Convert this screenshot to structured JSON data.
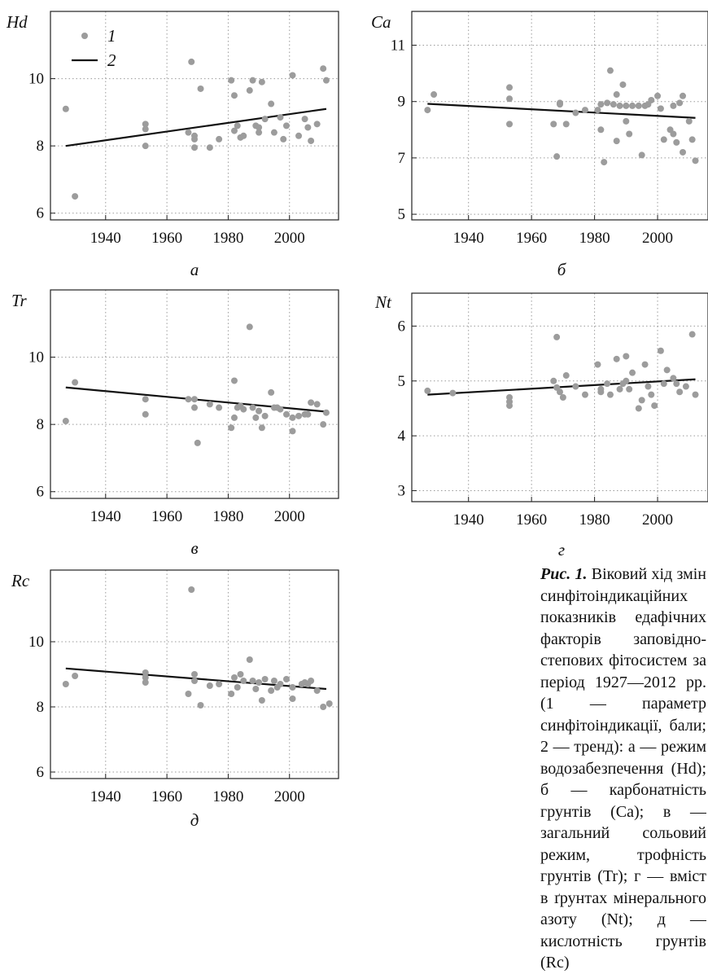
{
  "chart_data": [
    {
      "type": "scatter",
      "ylabel": "Hd",
      "sublabel": "а",
      "xlim": [
        1922,
        2016
      ],
      "ylim": [
        5.8,
        12.0
      ],
      "xticks": [
        1940,
        1960,
        1980,
        2000
      ],
      "yticks": [
        6,
        8,
        10
      ],
      "grid": true,
      "legend": {
        "placement": "top-left",
        "entries": [
          {
            "marker": "point",
            "label": "1"
          },
          {
            "marker": "line",
            "label": "2"
          }
        ]
      },
      "points": [
        [
          1927,
          9.1
        ],
        [
          1930,
          6.5
        ],
        [
          1953,
          8.0
        ],
        [
          1953,
          8.5
        ],
        [
          1953,
          8.65
        ],
        [
          1967,
          8.4
        ],
        [
          1968,
          10.5
        ],
        [
          1969,
          8.2
        ],
        [
          1969,
          8.3
        ],
        [
          1969,
          7.95
        ],
        [
          1971,
          9.7
        ],
        [
          1974,
          7.95
        ],
        [
          1977,
          8.2
        ],
        [
          1981,
          9.95
        ],
        [
          1982,
          9.5
        ],
        [
          1982,
          8.45
        ],
        [
          1983,
          8.6
        ],
        [
          1984,
          8.25
        ],
        [
          1985,
          8.3
        ],
        [
          1987,
          9.65
        ],
        [
          1988,
          9.95
        ],
        [
          1989,
          8.6
        ],
        [
          1990,
          8.55
        ],
        [
          1990,
          8.4
        ],
        [
          1991,
          9.9
        ],
        [
          1992,
          8.8
        ],
        [
          1994,
          9.25
        ],
        [
          1995,
          8.4
        ],
        [
          1997,
          8.85
        ],
        [
          1998,
          8.2
        ],
        [
          1999,
          8.6
        ],
        [
          2001,
          10.1
        ],
        [
          2003,
          8.3
        ],
        [
          2005,
          8.8
        ],
        [
          2006,
          8.55
        ],
        [
          2007,
          8.15
        ],
        [
          2009,
          8.65
        ],
        [
          2011,
          10.3
        ],
        [
          2012,
          9.95
        ]
      ],
      "trend": [
        [
          1927,
          8.0
        ],
        [
          2012,
          9.1
        ]
      ]
    },
    {
      "type": "scatter",
      "ylabel": "Ca",
      "sublabel": "б",
      "xlim": [
        1922,
        2016
      ],
      "ylim": [
        4.8,
        12.2
      ],
      "xticks": [
        1940,
        1960,
        1980,
        2000
      ],
      "yticks": [
        5,
        7,
        9,
        11
      ],
      "grid": true,
      "points": [
        [
          1927,
          8.7
        ],
        [
          1929,
          9.25
        ],
        [
          1953,
          9.5
        ],
        [
          1953,
          9.1
        ],
        [
          1953,
          8.2
        ],
        [
          1967,
          8.2
        ],
        [
          1968,
          7.05
        ],
        [
          1969,
          8.95
        ],
        [
          1969,
          8.9
        ],
        [
          1971,
          8.2
        ],
        [
          1974,
          8.6
        ],
        [
          1977,
          8.7
        ],
        [
          1981,
          8.7
        ],
        [
          1982,
          8.0
        ],
        [
          1982,
          8.9
        ],
        [
          1983,
          6.85
        ],
        [
          1984,
          8.95
        ],
        [
          1985,
          10.1
        ],
        [
          1986,
          8.9
        ],
        [
          1987,
          9.25
        ],
        [
          1987,
          7.6
        ],
        [
          1988,
          8.85
        ],
        [
          1989,
          9.6
        ],
        [
          1990,
          8.85
        ],
        [
          1990,
          8.3
        ],
        [
          1991,
          7.85
        ],
        [
          1992,
          8.85
        ],
        [
          1994,
          8.85
        ],
        [
          1995,
          7.1
        ],
        [
          1996,
          8.85
        ],
        [
          1997,
          8.9
        ],
        [
          1998,
          9.05
        ],
        [
          2000,
          9.2
        ],
        [
          2001,
          8.75
        ],
        [
          2002,
          7.65
        ],
        [
          2004,
          8.0
        ],
        [
          2005,
          8.85
        ],
        [
          2005,
          7.85
        ],
        [
          2006,
          7.55
        ],
        [
          2007,
          8.95
        ],
        [
          2008,
          7.2
        ],
        [
          2008,
          9.2
        ],
        [
          2010,
          8.3
        ],
        [
          2011,
          7.65
        ],
        [
          2012,
          6.9
        ]
      ],
      "trend": [
        [
          1927,
          8.92
        ],
        [
          2012,
          8.42
        ]
      ]
    },
    {
      "type": "scatter",
      "ylabel": "Tr",
      "sublabel": "в",
      "xlim": [
        1922,
        2016
      ],
      "ylim": [
        5.8,
        12.0
      ],
      "xticks": [
        1940,
        1960,
        1980,
        2000
      ],
      "yticks": [
        6,
        8,
        10
      ],
      "grid": true,
      "points": [
        [
          1927,
          8.1
        ],
        [
          1930,
          9.25
        ],
        [
          1953,
          8.75
        ],
        [
          1953,
          8.3
        ],
        [
          1967,
          8.75
        ],
        [
          1969,
          8.75
        ],
        [
          1969,
          8.5
        ],
        [
          1970,
          7.45
        ],
        [
          1974,
          8.6
        ],
        [
          1977,
          8.5
        ],
        [
          1981,
          7.9
        ],
        [
          1982,
          9.3
        ],
        [
          1982,
          8.2
        ],
        [
          1983,
          8.5
        ],
        [
          1984,
          8.55
        ],
        [
          1985,
          8.45
        ],
        [
          1987,
          10.9
        ],
        [
          1988,
          8.5
        ],
        [
          1989,
          8.2
        ],
        [
          1990,
          8.4
        ],
        [
          1990,
          8.4
        ],
        [
          1991,
          7.9
        ],
        [
          1992,
          8.25
        ],
        [
          1994,
          8.95
        ],
        [
          1995,
          8.5
        ],
        [
          1996,
          8.5
        ],
        [
          1997,
          8.45
        ],
        [
          1999,
          8.3
        ],
        [
          2001,
          7.8
        ],
        [
          2001,
          8.2
        ],
        [
          2003,
          8.25
        ],
        [
          2005,
          8.3
        ],
        [
          2006,
          8.3
        ],
        [
          2007,
          8.65
        ],
        [
          2009,
          8.6
        ],
        [
          2011,
          8.0
        ],
        [
          2012,
          8.35
        ]
      ],
      "trend": [
        [
          1927,
          9.1
        ],
        [
          2012,
          8.38
        ]
      ]
    },
    {
      "type": "scatter",
      "ylabel": "Nt",
      "sublabel": "г",
      "xlim": [
        1922,
        2016
      ],
      "ylim": [
        2.8,
        6.6
      ],
      "xticks": [
        1940,
        1960,
        1980,
        2000
      ],
      "yticks": [
        3,
        4,
        5,
        6
      ],
      "grid": true,
      "points": [
        [
          1927,
          4.82
        ],
        [
          1935,
          4.78
        ],
        [
          1953,
          4.7
        ],
        [
          1953,
          4.62
        ],
        [
          1953,
          4.55
        ],
        [
          1967,
          5.0
        ],
        [
          1968,
          5.8
        ],
        [
          1968,
          4.88
        ],
        [
          1969,
          4.8
        ],
        [
          1970,
          4.7
        ],
        [
          1971,
          5.1
        ],
        [
          1974,
          4.9
        ],
        [
          1977,
          4.75
        ],
        [
          1981,
          5.3
        ],
        [
          1982,
          4.85
        ],
        [
          1982,
          4.8
        ],
        [
          1984,
          4.95
        ],
        [
          1985,
          4.75
        ],
        [
          1987,
          5.4
        ],
        [
          1988,
          4.85
        ],
        [
          1989,
          4.95
        ],
        [
          1990,
          5.0
        ],
        [
          1990,
          5.45
        ],
        [
          1991,
          4.85
        ],
        [
          1992,
          5.15
        ],
        [
          1994,
          4.5
        ],
        [
          1995,
          4.65
        ],
        [
          1996,
          5.3
        ],
        [
          1997,
          4.9
        ],
        [
          1998,
          4.75
        ],
        [
          1999,
          4.55
        ],
        [
          2001,
          5.55
        ],
        [
          2002,
          4.95
        ],
        [
          2003,
          5.2
        ],
        [
          2005,
          5.05
        ],
        [
          2006,
          4.95
        ],
        [
          2007,
          4.8
        ],
        [
          2009,
          4.9
        ],
        [
          2011,
          5.85
        ],
        [
          2012,
          4.75
        ]
      ],
      "trend": [
        [
          1927,
          4.75
        ],
        [
          2012,
          5.03
        ]
      ]
    },
    {
      "type": "scatter",
      "ylabel": "Rc",
      "sublabel": "д",
      "xlim": [
        1922,
        2016
      ],
      "ylim": [
        5.8,
        12.2
      ],
      "xticks": [
        1940,
        1960,
        1980,
        2000
      ],
      "yticks": [
        6,
        8,
        10
      ],
      "grid": true,
      "points": [
        [
          1927,
          8.7
        ],
        [
          1930,
          8.95
        ],
        [
          1953,
          8.75
        ],
        [
          1953,
          8.9
        ],
        [
          1953,
          9.05
        ],
        [
          1967,
          8.4
        ],
        [
          1968,
          11.6
        ],
        [
          1969,
          9.0
        ],
        [
          1969,
          8.8
        ],
        [
          1971,
          8.05
        ],
        [
          1974,
          8.65
        ],
        [
          1977,
          8.7
        ],
        [
          1981,
          8.4
        ],
        [
          1982,
          8.9
        ],
        [
          1983,
          8.6
        ],
        [
          1984,
          9.0
        ],
        [
          1985,
          8.8
        ],
        [
          1987,
          9.45
        ],
        [
          1988,
          8.8
        ],
        [
          1989,
          8.55
        ],
        [
          1990,
          8.75
        ],
        [
          1991,
          8.2
        ],
        [
          1992,
          8.85
        ],
        [
          1994,
          8.5
        ],
        [
          1995,
          8.8
        ],
        [
          1996,
          8.6
        ],
        [
          1997,
          8.7
        ],
        [
          1999,
          8.85
        ],
        [
          2001,
          8.25
        ],
        [
          2001,
          8.6
        ],
        [
          2004,
          8.7
        ],
        [
          2005,
          8.75
        ],
        [
          2006,
          8.7
        ],
        [
          2007,
          8.8
        ],
        [
          2009,
          8.5
        ],
        [
          2011,
          8.0
        ],
        [
          2013,
          8.1
        ]
      ],
      "trend": [
        [
          1927,
          9.18
        ],
        [
          2012,
          8.55
        ]
      ]
    }
  ],
  "caption": {
    "label": "Рис. 1.",
    "text": "Віковий хід змін синфітоіндикаційних показників едафічних факторів заповідно-степових фітосистем за період 1927—2012 рр. (1 — параметр синфітоіндикації, бали; 2 — тренд): а — режим водозабезпечення (Hd); б — карбонатність грунтів (Ca); в — загальний сольовий режим, трофність грунтів (Tr); г — вміст в ґрунтах мінерального азоту (Nt); д — кислотність грунтів (Rc)"
  },
  "colors": {
    "points": "#9c9c9c",
    "trend": "#111111",
    "grid": "#9a9a9a"
  }
}
